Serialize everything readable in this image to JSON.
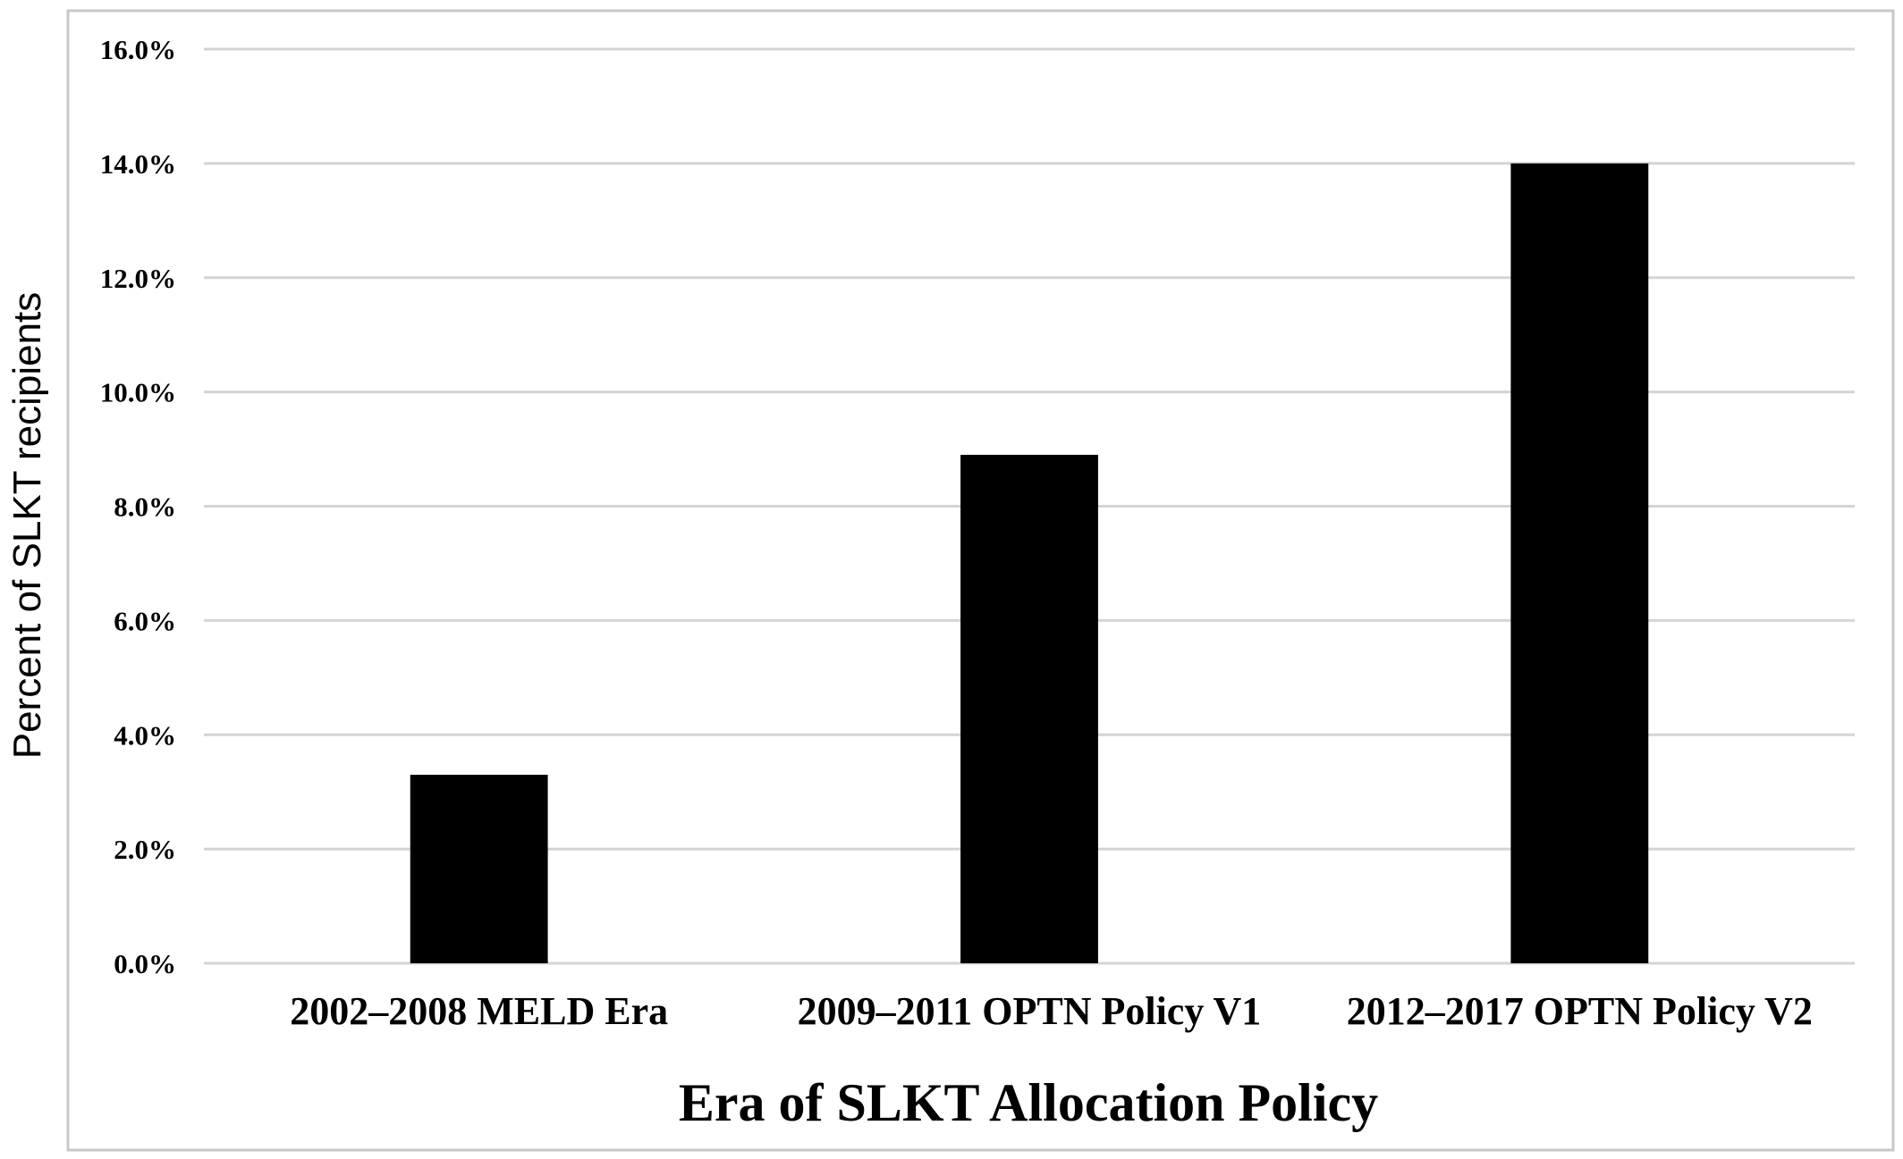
{
  "chart_data": {
    "type": "bar",
    "categories": [
      "2002‒2008 MELD Era",
      "2009‒2011 OPTN Policy V1",
      "2012‒2017 OPTN Policy V2"
    ],
    "values": [
      3.3,
      8.9,
      14.0
    ],
    "title": "",
    "xlabel": "Era of SLKT Allocation Policy",
    "ylabel": "Percent of SLKT recipients",
    "ylim": [
      0,
      16
    ],
    "yticks": [
      "0.0%",
      "2.0%",
      "4.0%",
      "6.0%",
      "8.0%",
      "10.0%",
      "12.0%",
      "14.0%",
      "16.0%"
    ],
    "grid": true,
    "legend": "none",
    "bar_color": "#000000",
    "grid_color": "#d4d4d4"
  }
}
